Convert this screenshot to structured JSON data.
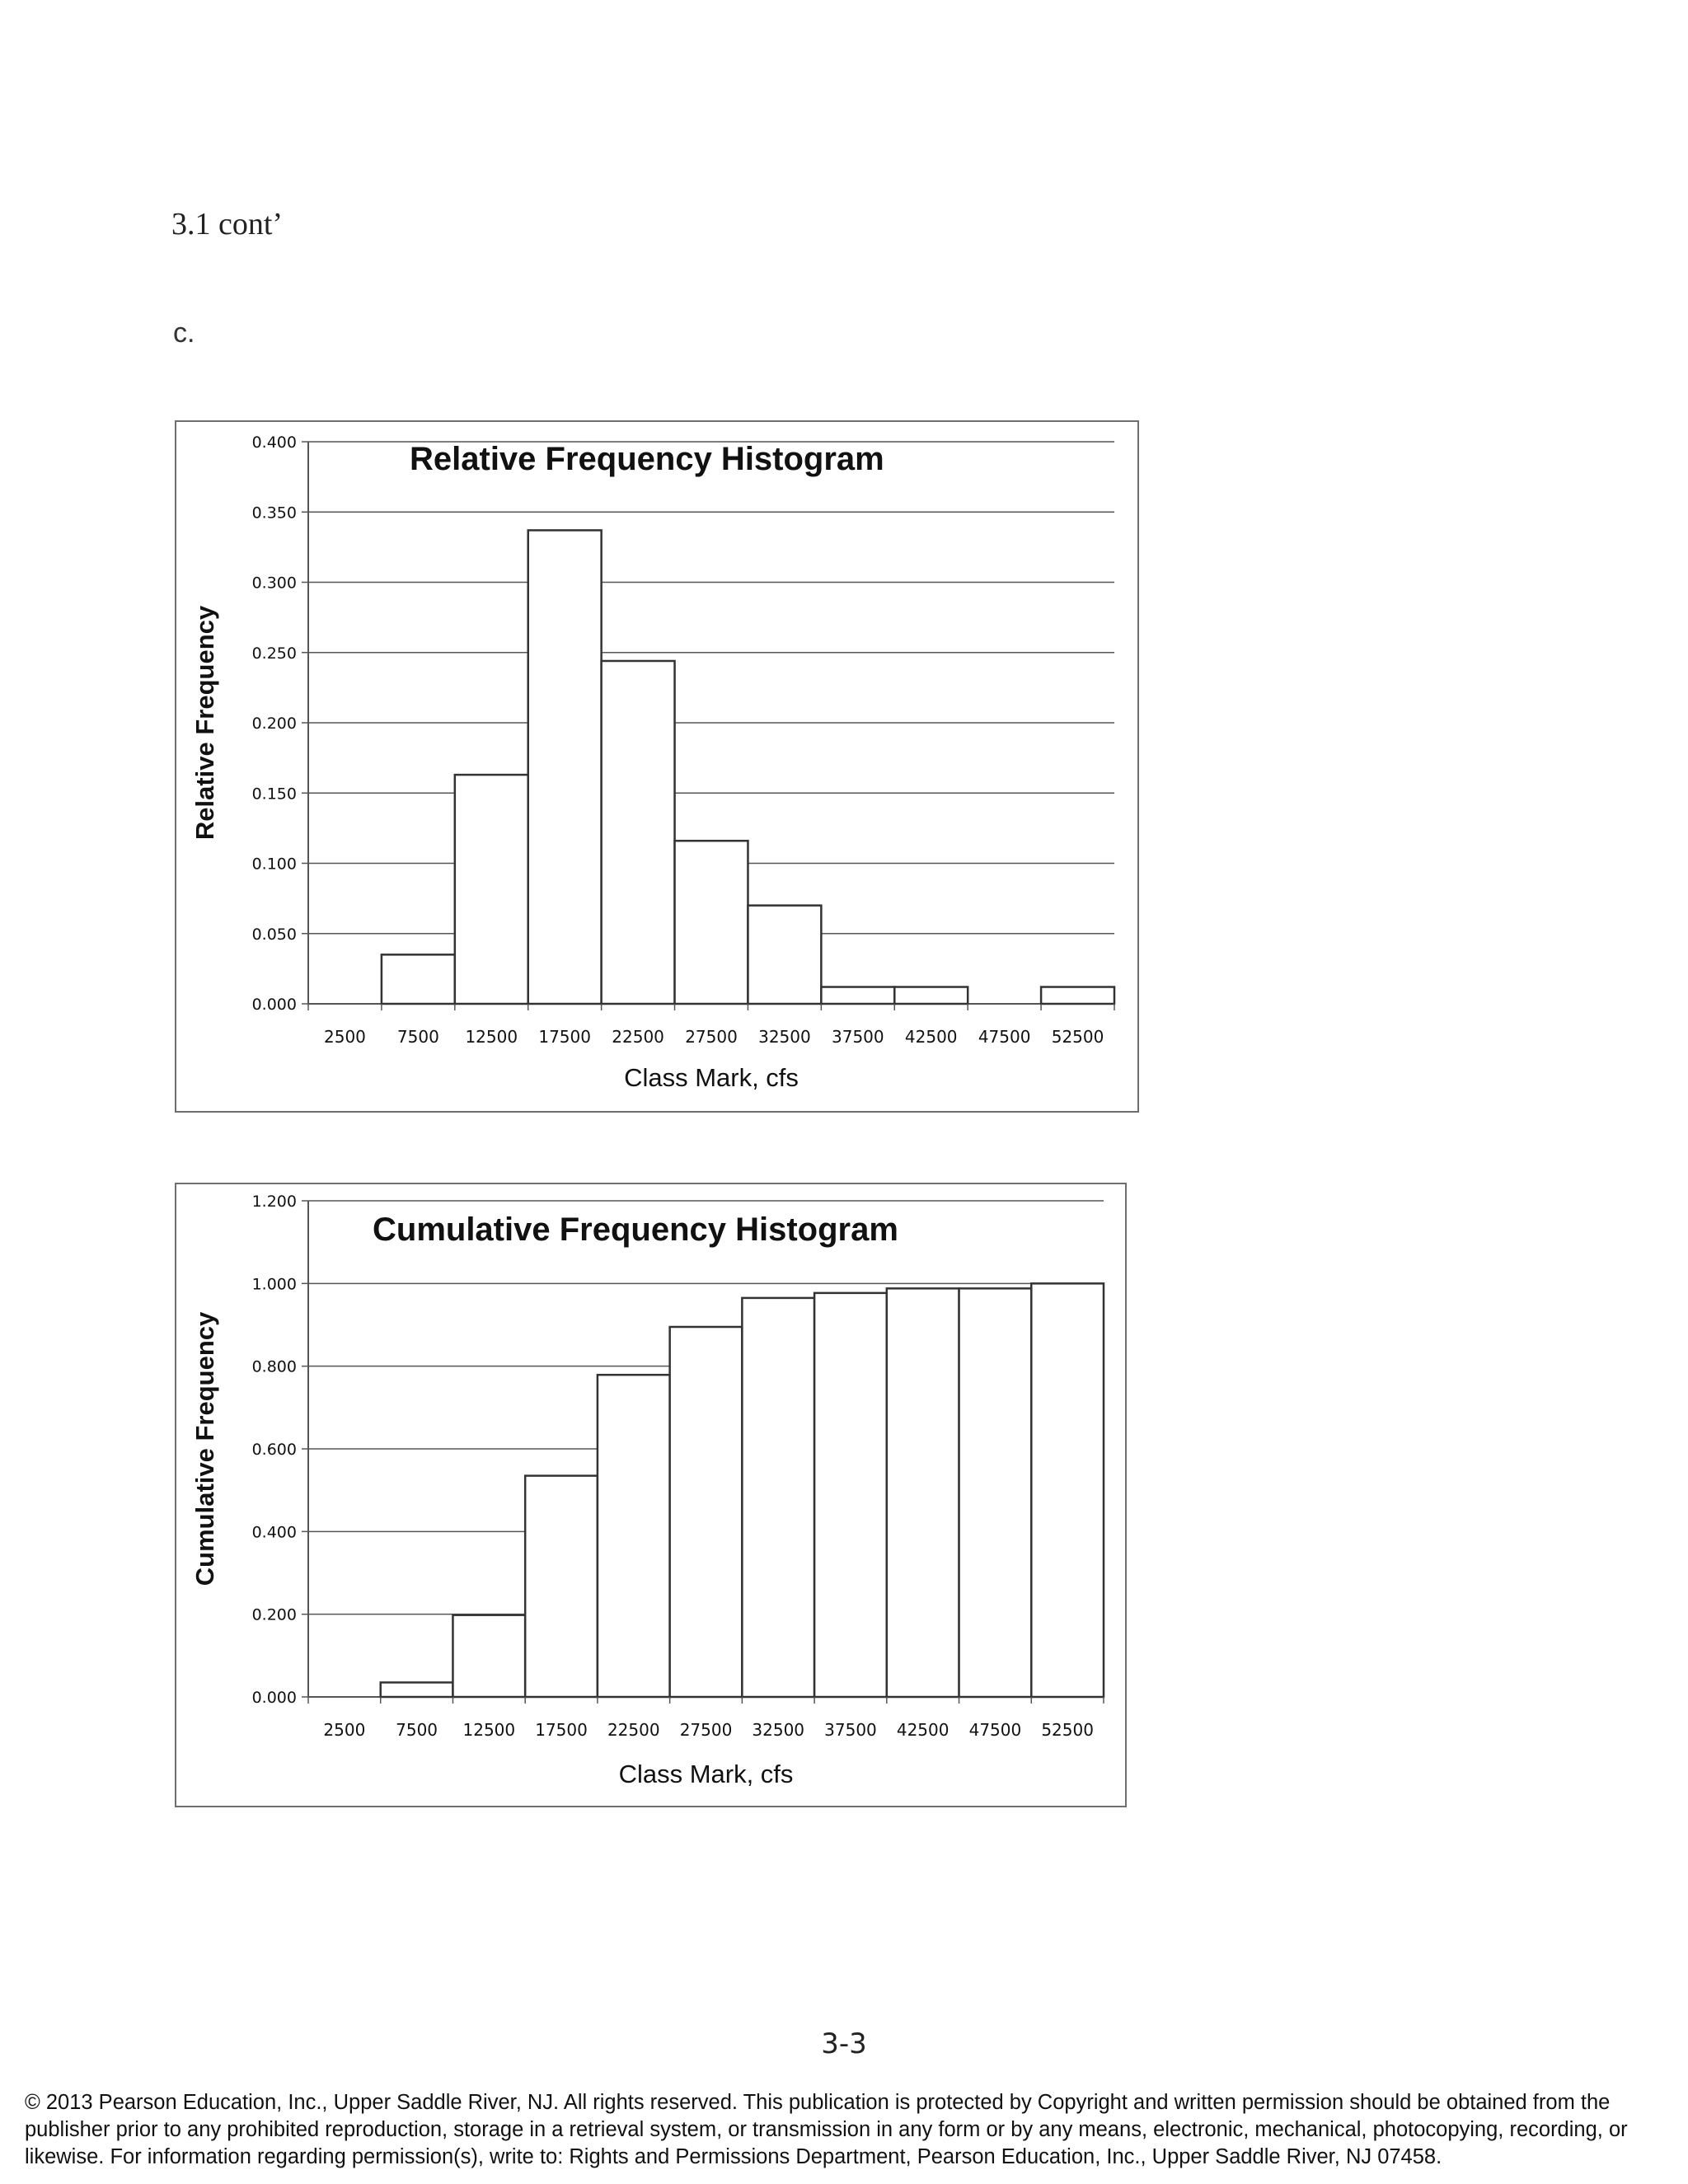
{
  "page": {
    "heading": "3.1 cont’",
    "part_label": "c.",
    "page_number": "3-3",
    "copyright": "© 2013 Pearson Education, Inc., Upper Saddle River, NJ. All rights reserved. This publication is protected by Copyright and written permission should be obtained from the publisher prior to any prohibited reproduction, storage in a retrieval system, or transmission in any form or by any means, electronic, mechanical, photocopying, recording, or likewise. For information regarding permission(s), write to: Rights and Permissions Department, Pearson Education, Inc., Upper Saddle River, NJ 07458."
  },
  "colors": {
    "bar_fill": "#ffffff",
    "bar_stroke": "#333333",
    "grid": "#555555",
    "text": "#111111"
  },
  "chart_data": [
    {
      "type": "bar",
      "title": "Relative Frequency Histogram",
      "xlabel": "Class Mark, cfs",
      "ylabel": "Relative Frequency",
      "categories": [
        "2500",
        "7500",
        "12500",
        "17500",
        "22500",
        "27500",
        "32500",
        "37500",
        "42500",
        "47500",
        "52500"
      ],
      "values": [
        0,
        0.035,
        0.163,
        0.337,
        0.244,
        0.116,
        0.07,
        0.012,
        0.012,
        0,
        0.012
      ],
      "yticks": [
        "0.000",
        "0.050",
        "0.100",
        "0.150",
        "0.200",
        "0.250",
        "0.300",
        "0.350",
        "0.400"
      ],
      "ylim": [
        0,
        0.4
      ],
      "grid": true,
      "legend": "none"
    },
    {
      "type": "bar",
      "title": "Cumulative Frequency Histogram",
      "xlabel": "Class Mark, cfs",
      "ylabel": "Cumulative Frequency",
      "categories": [
        "2500",
        "7500",
        "12500",
        "17500",
        "22500",
        "27500",
        "32500",
        "37500",
        "42500",
        "47500",
        "52500"
      ],
      "values": [
        0,
        0.035,
        0.198,
        0.535,
        0.779,
        0.895,
        0.965,
        0.977,
        0.988,
        0.988,
        1.0
      ],
      "yticks": [
        "0.000",
        "0.200",
        "0.400",
        "0.600",
        "0.800",
        "1.000",
        "1.200"
      ],
      "ylim": [
        0,
        1.2
      ],
      "grid": true,
      "legend": "none"
    }
  ]
}
